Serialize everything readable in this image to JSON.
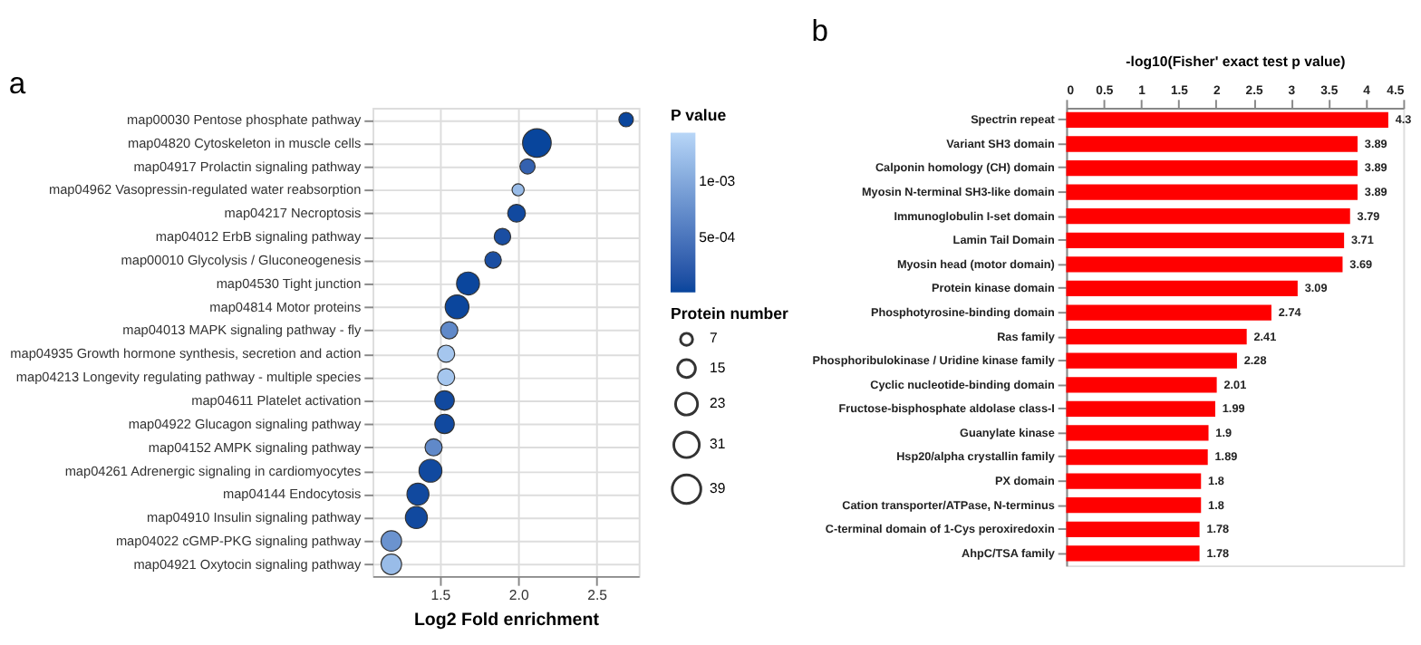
{
  "chart_data": [
    {
      "type": "bubble",
      "title": "a",
      "xlabel": "Log2 Fold enrichment",
      "legend_title": "Protein number",
      "clabel": "P value",
      "categories": [
        "map00030 Pentose phosphate pathway",
        "map04820 Cytoskeleton in muscle cells",
        "map04917 Prolactin signaling pathway",
        "map04962 Vasopressin-regulated water reabsorption",
        "map04217 Necroptosis",
        "map04012 ErbB signaling pathway",
        "map00010 Glycolysis / Gluconeogenesis",
        "map04530 Tight junction",
        "map04814 Motor proteins",
        "map04013 MAPK signaling pathway - fly",
        "map04935 Growth hormone synthesis, secretion and action",
        "map04213 Longevity regulating pathway - multiple species",
        "map04611 Platelet activation",
        "map04922 Glucagon signaling pathway",
        "map04152 AMPK signaling pathway",
        "map04261 Adrenergic signaling in cardiomyocytes",
        "map04144 Endocytosis",
        "map04910 Insulin signaling pathway",
        "map04022 cGMP-PKG signaling pathway",
        "map04921 Oxytocin signaling pathway"
      ],
      "values": [
        2.69,
        2.12,
        2.06,
        2.0,
        1.99,
        1.9,
        1.84,
        1.68,
        1.61,
        1.56,
        1.54,
        1.54,
        1.53,
        1.53,
        1.46,
        1.44,
        1.36,
        1.35,
        1.19,
        1.19
      ],
      "sizes": [
        10,
        39,
        11,
        7,
        15,
        13,
        13,
        25,
        27,
        14,
        14,
        14,
        18,
        18,
        14,
        25,
        23,
        23,
        20,
        20
      ],
      "size_legend": [
        7,
        15,
        23,
        31,
        39
      ],
      "cvalues": [
        2e-05,
        1e-05,
        0.0003,
        0.0012,
        5e-05,
        0.0001,
        0.0001,
        2e-05,
        2e-05,
        0.0007,
        0.0013,
        0.0013,
        5e-05,
        5e-05,
        0.0007,
        5e-05,
        5e-05,
        5e-05,
        0.0008,
        0.0012
      ],
      "clim": [
        1e-05,
        0.00145
      ],
      "cticks": [
        {
          "value": 0.0005,
          "label": "5e-04"
        },
        {
          "value": 0.001,
          "label": "1e-03"
        }
      ],
      "xlim": [
        1.07,
        2.77
      ],
      "xticks": [
        {
          "value": 1.5,
          "label": "1.5"
        },
        {
          "value": 2.0,
          "label": "2.0"
        },
        {
          "value": 2.5,
          "label": "2.5"
        }
      ],
      "grid": true,
      "marker": "circle",
      "orientation": "horizontal"
    },
    {
      "type": "bar",
      "title": "b",
      "orientation": "horizontal",
      "xlabel": "-log10(Fisher' exact test p value)",
      "color": "#ff0000",
      "categories": [
        "Spectrin repeat",
        "Variant SH3 domain",
        "Calponin homology (CH) domain",
        "Myosin N-terminal SH3-like domain",
        "Immunoglobulin I-set domain",
        "Lamin Tail Domain",
        "Myosin head (motor domain)",
        "Protein kinase domain",
        "Phosphotyrosine-binding domain",
        "Ras family",
        "Phosphoribulokinase / Uridine kinase family",
        "Cyclic nucleotide-binding domain",
        "Fructose-bisphosphate aldolase class-I",
        "Guanylate kinase",
        "Hsp20/alpha crystallin family",
        "PX domain",
        "Cation transporter/ATPase, N-terminus",
        "C-terminal domain of 1-Cys peroxiredoxin",
        "AhpC/TSA family"
      ],
      "values": [
        4.3,
        3.89,
        3.89,
        3.89,
        3.79,
        3.71,
        3.69,
        3.09,
        2.74,
        2.41,
        2.28,
        2.01,
        1.99,
        1.9,
        1.89,
        1.8,
        1.8,
        1.78,
        1.78
      ],
      "xlim": [
        0,
        4.5
      ],
      "xticks": [
        0,
        0.5,
        1,
        1.5,
        2,
        2.5,
        3,
        3.5,
        4,
        4.5
      ],
      "data_labels": true,
      "grid": false
    }
  ]
}
